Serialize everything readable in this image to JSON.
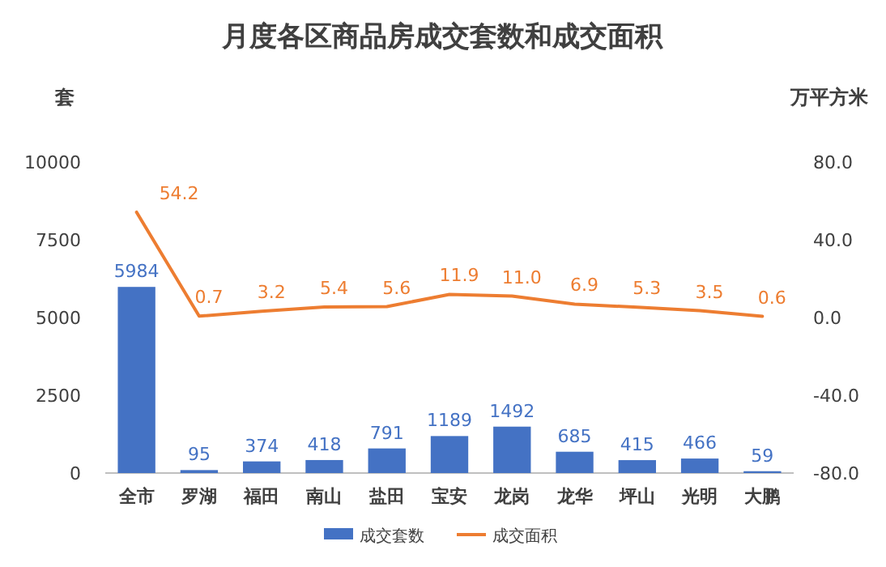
{
  "chart_data": {
    "type": "bar",
    "title": "月度各区商品房成交套数和成交面积",
    "ylabel": "套",
    "y2label": "万平方米",
    "categories": [
      "全市",
      "罗湖",
      "福田",
      "南山",
      "盐田",
      "宝安",
      "龙岗",
      "龙华",
      "坪山",
      "光明",
      "大鹏"
    ],
    "series": [
      {
        "name": "成交套数",
        "color": "#4472c4",
        "values": [
          5984,
          95,
          374,
          418,
          791,
          1189,
          1492,
          685,
          415,
          466,
          59
        ]
      },
      {
        "name": "成交面积",
        "type": "line",
        "axis": "y2",
        "color": "#ed7d31",
        "values": [
          54.2,
          0.7,
          3.2,
          5.4,
          5.6,
          11.9,
          11.0,
          6.9,
          5.3,
          3.5,
          0.6
        ],
        "value_labels": [
          "54.2",
          "0.7",
          "3.2",
          "5.4",
          "5.6",
          "11.9",
          "11.0",
          "6.9",
          "5.3",
          "3.5",
          "0.6"
        ]
      }
    ],
    "ylim": [
      0,
      10000
    ],
    "yticks": [
      0,
      2500,
      5000,
      7500,
      10000
    ],
    "y2lim": [
      -80,
      80
    ],
    "y2ticks": [
      {
        "value": -80,
        "label": "-80.0"
      },
      {
        "value": -40,
        "label": "-40.0"
      },
      {
        "value": 0,
        "label": "0.0"
      },
      {
        "value": 40,
        "label": "40.0"
      },
      {
        "value": 80,
        "label": "80.0"
      }
    ],
    "data_labels": true,
    "legend": "bottom"
  }
}
